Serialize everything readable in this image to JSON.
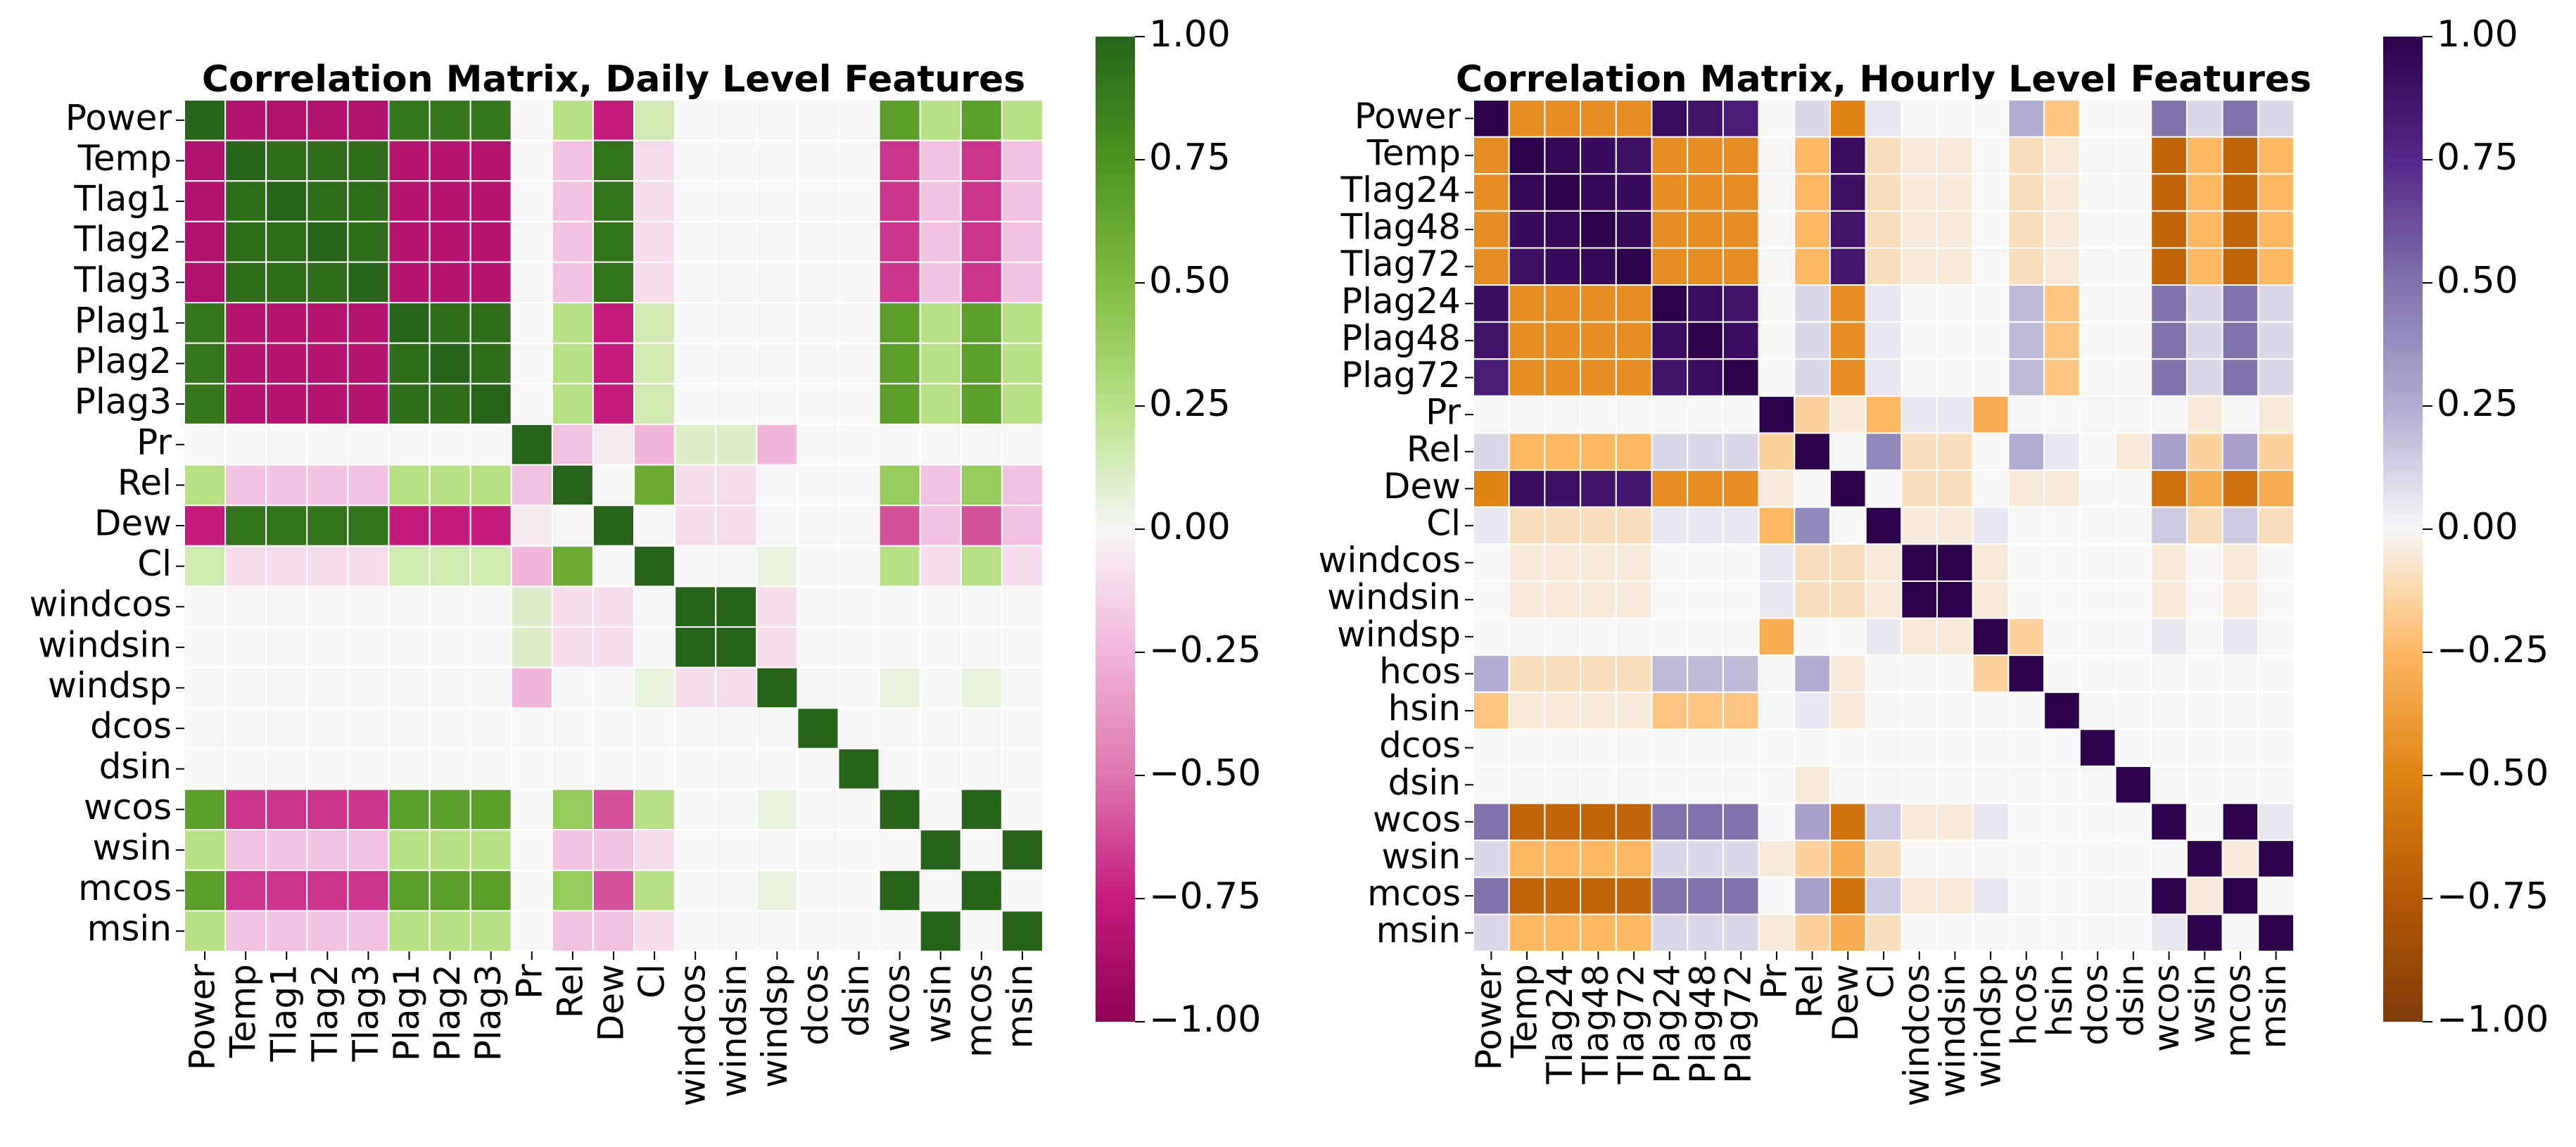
{
  "chart_data": [
    {
      "type": "heatmap",
      "title": "Correlation Matrix, Daily Level Features",
      "colormap": "PiYG",
      "vmin": -1.0,
      "vmax": 1.0,
      "colorbar_ticks": [
        "1.00",
        "0.75",
        "0.50",
        "0.25",
        "0.00",
        "−0.25",
        "−0.50",
        "−0.75",
        "−1.00"
      ],
      "labels": [
        "Power",
        "Temp",
        "Tlag1",
        "Tlag2",
        "Tlag3",
        "Plag1",
        "Plag2",
        "Plag3",
        "Pr",
        "Rel",
        "Dew",
        "Cl",
        "windcos",
        "windsin",
        "windsp",
        "dcos",
        "dsin",
        "wcos",
        "wsin",
        "mcos",
        "msin"
      ],
      "matrix": [
        [
          1,
          -0.84,
          -0.84,
          -0.84,
          -0.84,
          0.9,
          0.9,
          0.9,
          0,
          0.25,
          -0.75,
          0.15,
          0,
          0,
          0,
          0,
          0,
          0.68,
          0.25,
          0.68,
          0.25
        ],
        [
          -0.84,
          1,
          0.95,
          0.95,
          0.95,
          -0.82,
          -0.82,
          -0.82,
          0,
          -0.2,
          0.92,
          -0.1,
          0,
          0,
          0,
          0,
          0,
          -0.68,
          -0.2,
          -0.68,
          -0.2
        ],
        [
          -0.84,
          0.95,
          1,
          0.95,
          0.95,
          -0.82,
          -0.82,
          -0.82,
          0,
          -0.2,
          0.92,
          -0.1,
          0,
          0,
          0,
          0,
          0,
          -0.68,
          -0.2,
          -0.68,
          -0.2
        ],
        [
          -0.84,
          0.95,
          0.95,
          1,
          0.95,
          -0.82,
          -0.82,
          -0.82,
          0,
          -0.2,
          0.92,
          -0.1,
          0,
          0,
          0,
          0,
          0,
          -0.68,
          -0.2,
          -0.68,
          -0.2
        ],
        [
          -0.84,
          0.95,
          0.95,
          0.95,
          1,
          -0.82,
          -0.82,
          -0.82,
          0,
          -0.2,
          0.92,
          -0.1,
          0,
          0,
          0,
          0,
          0,
          -0.68,
          -0.2,
          -0.68,
          -0.2
        ],
        [
          0.9,
          -0.82,
          -0.82,
          -0.82,
          -0.82,
          1,
          0.95,
          0.95,
          0,
          0.25,
          -0.75,
          0.15,
          0,
          0,
          0,
          0,
          0,
          0.68,
          0.25,
          0.68,
          0.25
        ],
        [
          0.9,
          -0.82,
          -0.82,
          -0.82,
          -0.82,
          0.95,
          1,
          0.95,
          0,
          0.25,
          -0.75,
          0.15,
          0,
          0,
          0,
          0,
          0,
          0.68,
          0.25,
          0.68,
          0.25
        ],
        [
          0.9,
          -0.82,
          -0.82,
          -0.82,
          -0.82,
          0.95,
          0.95,
          1,
          0,
          0.25,
          -0.75,
          0.15,
          0,
          0,
          0,
          0,
          0,
          0.68,
          0.25,
          0.68,
          0.25
        ],
        [
          0,
          0,
          0,
          0,
          0,
          0,
          0,
          0,
          1,
          -0.2,
          -0.05,
          -0.25,
          0.1,
          0.1,
          -0.25,
          0,
          0,
          0,
          0,
          0,
          0
        ],
        [
          0.25,
          -0.2,
          -0.2,
          -0.2,
          -0.2,
          0.25,
          0.25,
          0.25,
          -0.2,
          1,
          0,
          0.6,
          -0.1,
          -0.1,
          0,
          0,
          0,
          0.4,
          -0.2,
          0.4,
          -0.2
        ],
        [
          -0.75,
          0.92,
          0.92,
          0.92,
          0.92,
          -0.75,
          -0.75,
          -0.75,
          -0.05,
          0,
          1,
          0,
          -0.1,
          -0.1,
          0,
          0,
          0,
          -0.6,
          -0.2,
          -0.6,
          -0.2
        ],
        [
          0.15,
          -0.1,
          -0.1,
          -0.1,
          -0.1,
          0.15,
          0.15,
          0.15,
          -0.25,
          0.6,
          0,
          1,
          0,
          0,
          0.05,
          0,
          0,
          0.25,
          -0.1,
          0.25,
          -0.1
        ],
        [
          0,
          0,
          0,
          0,
          0,
          0,
          0,
          0,
          0.1,
          -0.1,
          -0.1,
          0,
          1,
          1,
          -0.1,
          0,
          0,
          0,
          0,
          0,
          0
        ],
        [
          0,
          0,
          0,
          0,
          0,
          0,
          0,
          0,
          0.1,
          -0.1,
          -0.1,
          0,
          1,
          1,
          -0.1,
          0,
          0,
          0,
          0,
          0,
          0
        ],
        [
          0,
          0,
          0,
          0,
          0,
          0,
          0,
          0,
          -0.25,
          0,
          0,
          0.05,
          -0.1,
          -0.1,
          1,
          0,
          0,
          0.05,
          0,
          0.05,
          0
        ],
        [
          0,
          0,
          0,
          0,
          0,
          0,
          0,
          0,
          0,
          0,
          0,
          0,
          0,
          0,
          0,
          1,
          0,
          0,
          0,
          0,
          0
        ],
        [
          0,
          0,
          0,
          0,
          0,
          0,
          0,
          0,
          0,
          0,
          0,
          0,
          0,
          0,
          0,
          0,
          1,
          0,
          0,
          0,
          0
        ],
        [
          0.68,
          -0.68,
          -0.68,
          -0.68,
          -0.68,
          0.68,
          0.68,
          0.68,
          0,
          0.4,
          -0.6,
          0.25,
          0,
          0,
          0.05,
          0,
          0,
          1,
          0,
          1,
          0
        ],
        [
          0.25,
          -0.2,
          -0.2,
          -0.2,
          -0.2,
          0.25,
          0.25,
          0.25,
          0,
          -0.2,
          -0.2,
          -0.1,
          0,
          0,
          0,
          0,
          0,
          0,
          1,
          0,
          1
        ],
        [
          0.68,
          -0.68,
          -0.68,
          -0.68,
          -0.68,
          0.68,
          0.68,
          0.68,
          0,
          0.4,
          -0.6,
          0.25,
          0,
          0,
          0.05,
          0,
          0,
          1,
          0,
          1,
          0
        ],
        [
          0.25,
          -0.2,
          -0.2,
          -0.2,
          -0.2,
          0.25,
          0.25,
          0.25,
          0,
          -0.2,
          -0.2,
          -0.1,
          0,
          0,
          0,
          0,
          0,
          0,
          1,
          0,
          1
        ]
      ]
    },
    {
      "type": "heatmap",
      "title": "Correlation Matrix, Hourly Level Features",
      "colormap": "PuOr_r",
      "vmin": -1.0,
      "vmax": 1.0,
      "colorbar_ticks": [
        "1.00",
        "0.75",
        "0.50",
        "0.25",
        "0.00",
        "−0.25",
        "−0.50",
        "−0.75",
        "−1.00"
      ],
      "labels": [
        "Power",
        "Temp",
        "Tlag24",
        "Tlag48",
        "Tlag72",
        "Plag24",
        "Plag48",
        "Plag72",
        "Pr",
        "Rel",
        "Dew",
        "Cl",
        "windcos",
        "windsin",
        "windsp",
        "hcos",
        "hsin",
        "dcos",
        "dsin",
        "wcos",
        "wsin",
        "mcos",
        "msin"
      ],
      "matrix": [
        [
          1,
          -0.45,
          -0.45,
          -0.45,
          -0.45,
          0.92,
          0.88,
          0.82,
          0,
          0.1,
          -0.5,
          0.05,
          0,
          0,
          0,
          0.25,
          -0.2,
          0,
          0,
          0.5,
          0.1,
          0.5,
          0.1
        ],
        [
          -0.45,
          1,
          0.95,
          0.93,
          0.9,
          -0.45,
          -0.45,
          -0.45,
          0,
          -0.25,
          0.92,
          -0.1,
          -0.05,
          -0.05,
          0,
          -0.1,
          -0.05,
          0,
          0,
          -0.68,
          -0.25,
          -0.68,
          -0.25
        ],
        [
          -0.45,
          0.95,
          1,
          0.95,
          0.93,
          -0.45,
          -0.45,
          -0.45,
          0,
          -0.25,
          0.9,
          -0.1,
          -0.05,
          -0.05,
          0,
          -0.1,
          -0.05,
          0,
          0,
          -0.68,
          -0.25,
          -0.68,
          -0.25
        ],
        [
          -0.45,
          0.93,
          0.95,
          1,
          0.95,
          -0.45,
          -0.45,
          -0.45,
          0,
          -0.25,
          0.88,
          -0.1,
          -0.05,
          -0.05,
          0,
          -0.1,
          -0.05,
          0,
          0,
          -0.68,
          -0.25,
          -0.68,
          -0.25
        ],
        [
          -0.45,
          0.9,
          0.93,
          0.95,
          1,
          -0.45,
          -0.45,
          -0.45,
          0,
          -0.25,
          0.86,
          -0.1,
          -0.05,
          -0.05,
          0,
          -0.1,
          -0.05,
          0,
          0,
          -0.68,
          -0.25,
          -0.68,
          -0.25
        ],
        [
          0.92,
          -0.45,
          -0.45,
          -0.45,
          -0.45,
          1,
          0.92,
          0.88,
          0,
          0.1,
          -0.45,
          0.05,
          0,
          0,
          0,
          0.2,
          -0.2,
          0,
          0,
          0.5,
          0.1,
          0.5,
          0.1
        ],
        [
          0.88,
          -0.45,
          -0.45,
          -0.45,
          -0.45,
          0.92,
          1,
          0.92,
          0,
          0.1,
          -0.45,
          0.05,
          0,
          0,
          0,
          0.2,
          -0.2,
          0,
          0,
          0.5,
          0.1,
          0.5,
          0.1
        ],
        [
          0.82,
          -0.45,
          -0.45,
          -0.45,
          -0.45,
          0.88,
          0.92,
          1,
          0,
          0.1,
          -0.45,
          0.05,
          0,
          0,
          0,
          0.2,
          -0.2,
          0,
          0,
          0.5,
          0.1,
          0.5,
          0.1
        ],
        [
          0,
          0,
          0,
          0,
          0,
          0,
          0,
          0,
          1,
          -0.15,
          -0.05,
          -0.25,
          0.05,
          0.05,
          -0.3,
          0,
          0,
          0,
          0,
          0,
          -0.05,
          0,
          -0.05
        ],
        [
          0.1,
          -0.25,
          -0.25,
          -0.25,
          -0.25,
          0.1,
          0.1,
          0.1,
          -0.15,
          1,
          0,
          0.4,
          -0.1,
          -0.1,
          0,
          0.25,
          0.05,
          0,
          -0.05,
          0.3,
          -0.15,
          0.3,
          -0.15
        ],
        [
          -0.5,
          0.92,
          0.9,
          0.88,
          0.86,
          -0.45,
          -0.45,
          -0.45,
          -0.05,
          0,
          1,
          0,
          -0.1,
          -0.1,
          0,
          -0.05,
          -0.05,
          0,
          0,
          -0.6,
          -0.3,
          -0.6,
          -0.3
        ],
        [
          0.05,
          -0.1,
          -0.1,
          -0.1,
          -0.1,
          0.05,
          0.05,
          0.05,
          -0.25,
          0.4,
          0,
          1,
          -0.05,
          -0.05,
          0.05,
          0,
          0,
          0,
          0,
          0.15,
          -0.1,
          0.15,
          -0.1
        ],
        [
          0,
          -0.05,
          -0.05,
          -0.05,
          -0.05,
          0,
          0,
          0,
          0.05,
          -0.1,
          -0.1,
          -0.05,
          1,
          1,
          -0.05,
          0,
          0,
          0,
          0,
          -0.05,
          0,
          -0.05,
          0
        ],
        [
          0,
          -0.05,
          -0.05,
          -0.05,
          -0.05,
          0,
          0,
          0,
          0.05,
          -0.1,
          -0.1,
          -0.05,
          1,
          1,
          -0.05,
          0,
          0,
          0,
          0,
          -0.05,
          0,
          -0.05,
          0
        ],
        [
          0,
          0,
          0,
          0,
          0,
          0,
          0,
          0,
          -0.3,
          0,
          0,
          0.05,
          -0.05,
          -0.05,
          1,
          -0.15,
          0,
          0,
          0,
          0.05,
          0,
          0.05,
          0
        ],
        [
          0.25,
          -0.1,
          -0.1,
          -0.1,
          -0.1,
          0.2,
          0.2,
          0.2,
          0,
          0.25,
          -0.05,
          0,
          0,
          0,
          -0.15,
          1,
          0,
          0,
          0,
          0,
          0,
          0,
          0
        ],
        [
          -0.2,
          -0.05,
          -0.05,
          -0.05,
          -0.05,
          -0.2,
          -0.2,
          -0.2,
          0,
          0.05,
          -0.05,
          0,
          0,
          0,
          0,
          0,
          1,
          0,
          0,
          0,
          0,
          0,
          0
        ],
        [
          0,
          0,
          0,
          0,
          0,
          0,
          0,
          0,
          0,
          0,
          0,
          0,
          0,
          0,
          0,
          0,
          0,
          1,
          0,
          0,
          0,
          0,
          0
        ],
        [
          0,
          0,
          0,
          0,
          0,
          0,
          0,
          0,
          0,
          -0.05,
          0,
          0,
          0,
          0,
          0,
          0,
          0,
          0,
          1,
          0,
          0,
          0,
          0
        ],
        [
          0.5,
          -0.68,
          -0.68,
          -0.68,
          -0.68,
          0.5,
          0.5,
          0.5,
          0,
          0.3,
          -0.6,
          0.15,
          -0.05,
          -0.05,
          0.05,
          0,
          0,
          0,
          0,
          1,
          0,
          1,
          0.05
        ],
        [
          0.1,
          -0.25,
          -0.25,
          -0.25,
          -0.25,
          0.1,
          0.1,
          0.1,
          -0.05,
          -0.15,
          -0.3,
          -0.1,
          0,
          0,
          0,
          0,
          0,
          0,
          0,
          0,
          1,
          -0.05,
          1
        ],
        [
          0.5,
          -0.68,
          -0.68,
          -0.68,
          -0.68,
          0.5,
          0.5,
          0.5,
          0,
          0.3,
          -0.6,
          0.15,
          -0.05,
          -0.05,
          0.05,
          0,
          0,
          0,
          0,
          1,
          -0.05,
          1,
          0
        ],
        [
          0.1,
          -0.25,
          -0.25,
          -0.25,
          -0.25,
          0.1,
          0.1,
          0.1,
          -0.05,
          -0.15,
          -0.3,
          -0.1,
          0,
          0,
          0,
          0,
          0,
          0,
          0,
          0.05,
          1,
          0,
          1
        ]
      ]
    }
  ]
}
